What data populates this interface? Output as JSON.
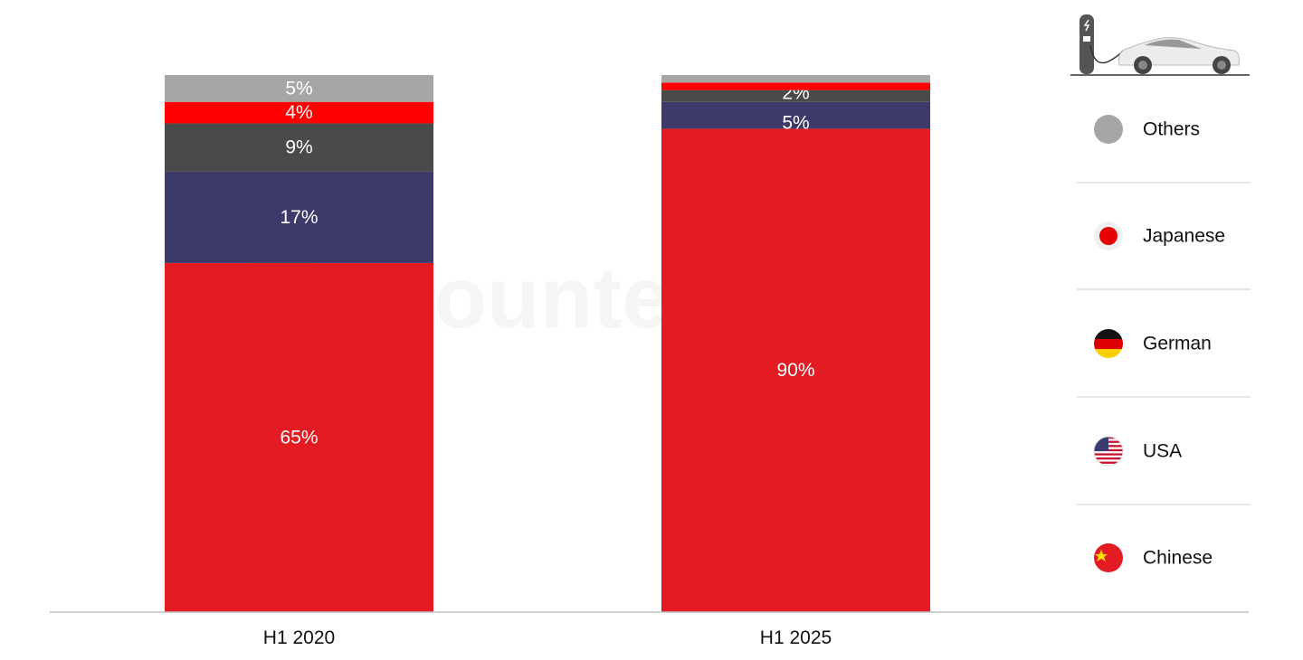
{
  "chart_data": {
    "type": "bar",
    "stacked": true,
    "categories": [
      "H1 2020",
      "H1 2025"
    ],
    "ylim": [
      0,
      100
    ],
    "grid": false,
    "legend_placement": "right",
    "series": [
      {
        "name": "Chinese",
        "color": "#e31b23",
        "values": [
          65,
          90
        ],
        "labels": [
          "65%",
          "90%"
        ],
        "icon": "china-flag-icon"
      },
      {
        "name": "USA",
        "color": "#3b3a6b",
        "values": [
          17,
          5
        ],
        "labels": [
          "17%",
          "5%"
        ],
        "icon": "usa-flag-icon"
      },
      {
        "name": "German",
        "color": "#4a4a4a",
        "values": [
          9,
          2.2
        ],
        "labels": [
          "9%",
          "2%"
        ],
        "icon": "germany-flag-icon"
      },
      {
        "name": "Japanese",
        "color": "#ff0000",
        "values": [
          4,
          1.4
        ],
        "labels": [
          "4%",
          ""
        ],
        "icon": "japan-flag-icon"
      },
      {
        "name": "Others",
        "color": "#a6a6a6",
        "values": [
          5,
          1.4
        ],
        "labels": [
          "5%",
          ""
        ],
        "icon": "gray-circle-icon"
      }
    ],
    "legend_order": [
      "Others",
      "Japanese",
      "German",
      "USA",
      "Chinese"
    ],
    "watermark": "Counterpoint"
  }
}
